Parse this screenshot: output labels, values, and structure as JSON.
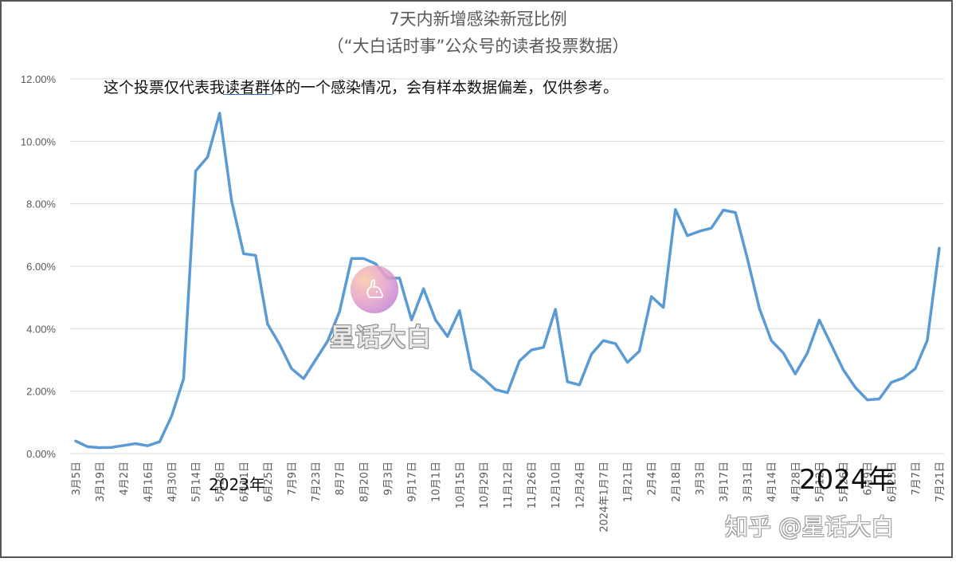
{
  "chart_data": {
    "type": "line",
    "title": "7天内新增感染新冠比例",
    "subtitle": "（“大白话时事”公众号的读者投票数据）",
    "annotation": "这个投票仅代表我读者群体的一个感染情况，会有样本数据偏差，仅供参考。",
    "year_labels": [
      "2023年",
      "2024年"
    ],
    "ylim": [
      0,
      0.12
    ],
    "yticks": [
      "0.00%",
      "2.00%",
      "4.00%",
      "6.00%",
      "8.00%",
      "10.00%",
      "12.00%"
    ],
    "grid": true,
    "legend": "none",
    "x_tick_labels": [
      "3月5日",
      "3月19日",
      "4月2日",
      "4月16日",
      "4月30日",
      "5月14日",
      "5月28日",
      "6月11日",
      "6月25日",
      "7月9日",
      "7月23日",
      "8月7日",
      "8月20日",
      "9月3日",
      "9月17日",
      "10月1日",
      "10月15日",
      "10月29日",
      "11月12日",
      "11月26日",
      "12月10日",
      "12月24日",
      "2024年1月7日",
      "1月21日",
      "2月4日",
      "2月18日",
      "3月3日",
      "3月17日",
      "3月31日",
      "4月14日",
      "4月28日",
      "5月12日",
      "5月26日",
      "6月9日",
      "6月23日",
      "7月7日",
      "7月21日"
    ],
    "series": [
      {
        "color": "#5b9bd5",
        "values": [
          0.004,
          0.0022,
          0.0019,
          0.002,
          0.0026,
          0.0032,
          0.0025,
          0.0038,
          0.012,
          0.024,
          0.0905,
          0.095,
          0.109,
          0.081,
          0.064,
          0.0635,
          0.0415,
          0.035,
          0.0272,
          0.024,
          0.03,
          0.036,
          0.0455,
          0.0625,
          0.0625,
          0.0608,
          0.0562,
          0.0562,
          0.0428,
          0.0528,
          0.0428,
          0.0375,
          0.0458,
          0.027,
          0.024,
          0.0205,
          0.0195,
          0.0297,
          0.0332,
          0.034,
          0.0462,
          0.023,
          0.022,
          0.0318,
          0.0362,
          0.0352,
          0.0292,
          0.0328,
          0.0503,
          0.0468,
          0.0782,
          0.0698,
          0.0712,
          0.0722,
          0.078,
          0.0772,
          0.0625,
          0.0465,
          0.0362,
          0.0322,
          0.0255,
          0.0322,
          0.0428,
          0.0348,
          0.0268,
          0.0212,
          0.0172,
          0.0175,
          0.0228,
          0.0242,
          0.0272,
          0.0362,
          0.0658
        ]
      }
    ]
  },
  "watermark": {
    "logo_text": "星话大白",
    "site_text": "知乎 @星话大白"
  }
}
